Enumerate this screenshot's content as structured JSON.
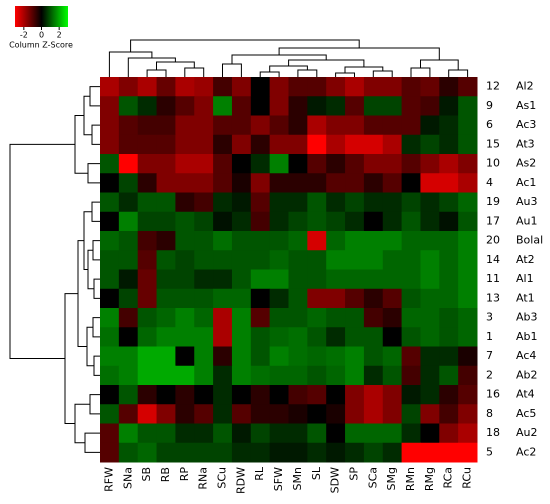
{
  "chart_data": {
    "type": "heatmap",
    "columns": [
      "RFW",
      "SNa",
      "SB",
      "RB",
      "RP",
      "RNa",
      "SCu",
      "RDW",
      "RL",
      "SFW",
      "SMn",
      "SL",
      "SDW",
      "SP",
      "SCa",
      "SMg",
      "RMn",
      "RMg",
      "RCa",
      "RCu"
    ],
    "row_ids": [
      "12",
      "9",
      "6",
      "15",
      "10",
      "4",
      "19",
      "17",
      "20",
      "14",
      "11",
      "13",
      "3",
      "1",
      "7",
      "2",
      "16",
      "8",
      "18",
      "5"
    ],
    "row_names": [
      "Al2",
      "As1",
      "Ac3",
      "At3",
      "As2",
      "Ac1",
      "Au3",
      "Au1",
      "Bolal",
      "At2",
      "Al1",
      "At1",
      "Ab3",
      "Ab1",
      "Ac4",
      "Ab2",
      "At4",
      "Ac5",
      "Au2",
      "Ac2"
    ],
    "values": [
      [
        -2,
        -1.5,
        -2,
        -1.2,
        -2,
        -1.8,
        -0.8,
        -1.5,
        0,
        -1.5,
        -1,
        -1,
        -1.5,
        -2,
        -1.5,
        -1.5,
        -1,
        -1.2,
        -0.5,
        -1
      ],
      [
        -1.5,
        1,
        0.5,
        -0.5,
        -1,
        -1.5,
        1.5,
        -1,
        0,
        -1.5,
        -0.5,
        0.3,
        0.5,
        -1,
        0.8,
        0.8,
        -1,
        -0.8,
        0.3,
        1
      ],
      [
        -1.5,
        -1,
        -0.8,
        -0.8,
        -1.5,
        -1.5,
        -1,
        -1,
        -1.5,
        -1,
        -0.5,
        -2,
        -1.5,
        -1.5,
        -1,
        -1,
        -1,
        0.3,
        0.5,
        1
      ],
      [
        -1.5,
        -1,
        -1,
        -1,
        -1.5,
        -1.5,
        -0.5,
        -1.5,
        -0.5,
        -1.5,
        -1.5,
        -3,
        -2,
        -2.5,
        -2.5,
        -2,
        0.5,
        0.8,
        0.5,
        1
      ],
      [
        1,
        -3,
        -1.5,
        -1.5,
        -2,
        -2,
        -1,
        0,
        0.5,
        1.5,
        0,
        -1,
        -0.5,
        -1,
        -1.5,
        -1.5,
        -1,
        -1.5,
        -2,
        -1.5
      ],
      [
        0,
        0.8,
        -0.5,
        -1.5,
        -1.5,
        -1.5,
        -1,
        -0.3,
        -1.5,
        -0.5,
        -0.5,
        -0.5,
        -1,
        -1,
        -0.5,
        -1,
        0,
        -2.5,
        -2.5,
        -2
      ],
      [
        1,
        0.5,
        1,
        1,
        -0.5,
        -0.8,
        0.5,
        0.3,
        -1,
        0.5,
        0.5,
        1,
        0.5,
        0.8,
        0.5,
        0.5,
        0.8,
        0.5,
        0.8,
        1.2
      ],
      [
        0,
        1.5,
        0.8,
        0.8,
        1,
        0.8,
        0.2,
        0.5,
        -0.8,
        0.5,
        0.8,
        1,
        0.8,
        0.5,
        0,
        0.5,
        1,
        0.5,
        0.2,
        1
      ],
      [
        1.2,
        1,
        -0.8,
        -0.5,
        1,
        1,
        1.3,
        1,
        1,
        1,
        1.2,
        -2.5,
        1.2,
        1.5,
        1.5,
        1.5,
        1.2,
        1.2,
        1.2,
        1.5
      ],
      [
        1,
        1,
        -1,
        1,
        0.8,
        1,
        1,
        1,
        1,
        1.2,
        1,
        1,
        1.5,
        1.5,
        1.5,
        1.2,
        1.2,
        1.5,
        1.2,
        1.5
      ],
      [
        1,
        0.3,
        -1.2,
        0.8,
        0.8,
        0.5,
        0.5,
        1,
        1.5,
        1.5,
        1,
        1,
        1.2,
        1.2,
        1.2,
        1.2,
        1.2,
        1.5,
        1.2,
        1.5
      ],
      [
        0,
        0.8,
        -1.2,
        1,
        1,
        1,
        1.2,
        1.2,
        0,
        0.5,
        1,
        -1.5,
        -1.5,
        -1,
        -0.5,
        -1,
        1,
        1.2,
        1.2,
        1.5
      ],
      [
        1.5,
        -0.8,
        1,
        1.2,
        1.5,
        1.2,
        -2,
        1.5,
        -1,
        1,
        1,
        1.2,
        1,
        1,
        -0.8,
        -0.5,
        1.2,
        1.2,
        1,
        1.2
      ],
      [
        1.3,
        0,
        1.2,
        1.5,
        1.5,
        1.5,
        -2,
        1.5,
        1,
        1.2,
        1.3,
        1,
        0.5,
        1,
        1,
        0,
        1,
        1.2,
        1,
        1.2
      ],
      [
        1.5,
        1.5,
        2,
        2,
        0,
        1.5,
        -0.5,
        1.5,
        1,
        1.5,
        1.3,
        1.2,
        1.3,
        1.5,
        1,
        1.2,
        -1,
        0.5,
        0.5,
        -0.3
      ],
      [
        1.3,
        1.5,
        2,
        2,
        2,
        1.5,
        0.5,
        1.5,
        1.3,
        1.2,
        1.2,
        1,
        1.2,
        1.5,
        0.5,
        1,
        -0.8,
        0.5,
        1,
        -0.8
      ],
      [
        0,
        1,
        -0.5,
        0,
        -0.5,
        0,
        0.5,
        0,
        -0.5,
        0,
        -0.8,
        -1,
        0,
        -1.5,
        -2,
        -1.5,
        0.3,
        0.5,
        -0.5,
        -1
      ],
      [
        1,
        -1,
        -2.5,
        -1.5,
        -0.5,
        -1,
        0.5,
        -1,
        -0.5,
        -0.5,
        -0.3,
        0,
        -0.3,
        -1.5,
        -2,
        -1.5,
        0.8,
        -1.5,
        -0.8,
        -1.5
      ],
      [
        -1,
        1.5,
        1,
        1,
        0.5,
        0.5,
        1,
        0.3,
        0.8,
        0.5,
        0.5,
        1,
        0,
        1.2,
        1.2,
        1.2,
        0.5,
        0,
        -1.5,
        -2
      ],
      [
        -1,
        1,
        1.2,
        0.8,
        0.8,
        0.8,
        0.8,
        0.5,
        0.5,
        0.3,
        0.3,
        0.5,
        0.3,
        0.5,
        0.8,
        0.5,
        -3,
        -3,
        -3,
        -3
      ]
    ],
    "colorbar": {
      "label": "Column Z-Score",
      "lim": [
        -3,
        3
      ],
      "ticks": [
        -2,
        0,
        2
      ],
      "colors": [
        "#ff0000",
        "#000000",
        "#00ff00"
      ]
    }
  }
}
